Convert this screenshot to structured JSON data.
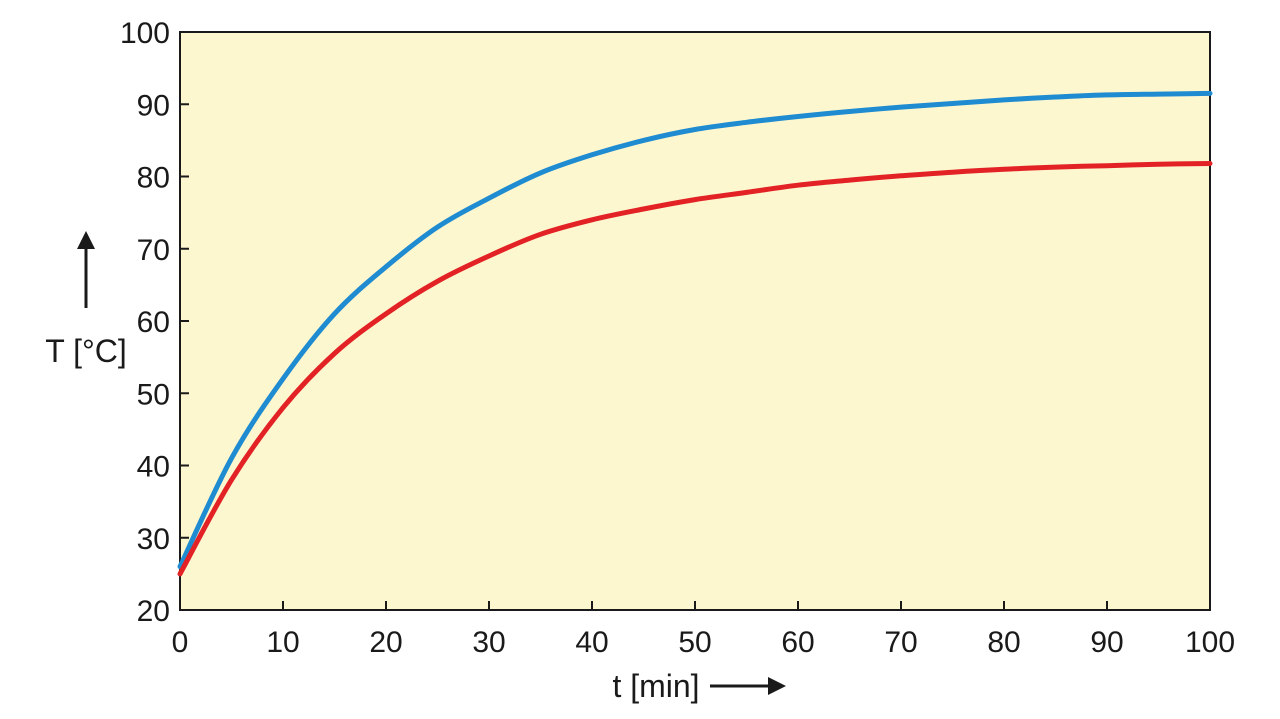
{
  "chart_data": {
    "type": "line",
    "title": "",
    "xlabel": "t [min]",
    "ylabel": "T [°C]",
    "xlim": [
      0,
      100
    ],
    "ylim": [
      20,
      100
    ],
    "xticks": [
      0,
      10,
      20,
      30,
      40,
      50,
      60,
      70,
      80,
      90,
      100
    ],
    "yticks": [
      20,
      30,
      40,
      50,
      60,
      70,
      80,
      90,
      100
    ],
    "grid": false,
    "background_color": "#fdf7d0",
    "series": [
      {
        "color": "#1f8bd0",
        "x": [
          0,
          5,
          10,
          15,
          20,
          25,
          30,
          35,
          40,
          45,
          50,
          55,
          60,
          65,
          70,
          75,
          80,
          85,
          90,
          95,
          100
        ],
        "y": [
          26,
          41,
          52,
          61,
          67.5,
          73,
          77,
          80.5,
          83,
          85,
          86.5,
          87.5,
          88.3,
          89,
          89.6,
          90.1,
          90.6,
          91,
          91.3,
          91.4,
          91.5
        ]
      },
      {
        "color": "#e32226",
        "x": [
          0,
          5,
          10,
          15,
          20,
          25,
          30,
          35,
          40,
          45,
          50,
          55,
          60,
          65,
          70,
          75,
          80,
          85,
          90,
          95,
          100
        ],
        "y": [
          25,
          38,
          48,
          55.5,
          61,
          65.5,
          69,
          72,
          74,
          75.5,
          76.8,
          77.8,
          78.8,
          79.5,
          80.1,
          80.6,
          81,
          81.3,
          81.5,
          81.7,
          81.8
        ]
      }
    ]
  }
}
